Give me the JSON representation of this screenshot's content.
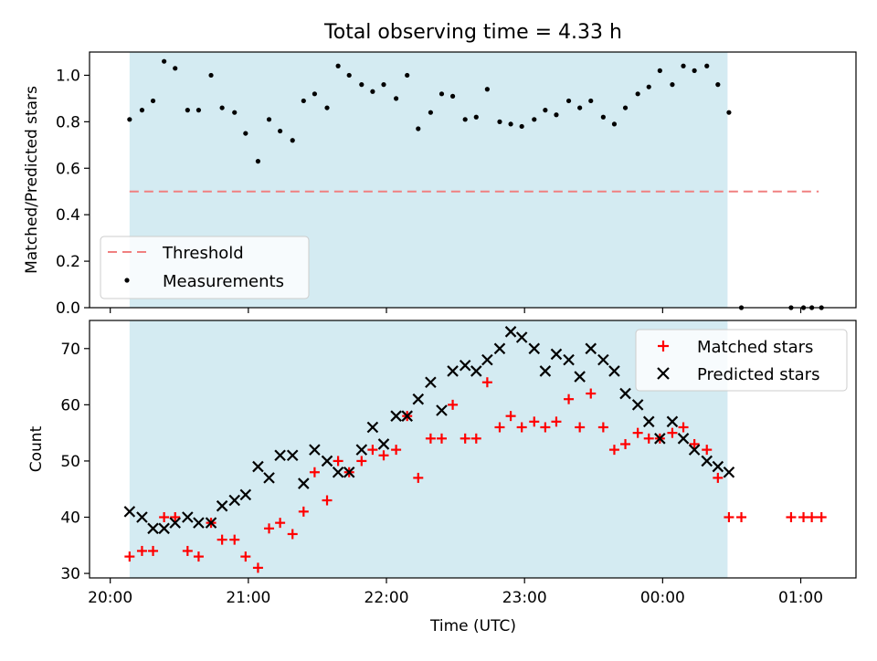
{
  "chart_data": [
    {
      "type": "scatter",
      "title": "Total observing time = 4.33 h",
      "ylabel": "Matched/Predicted stars",
      "xlabel": "",
      "x_unit": "hours since 20:00 UTC",
      "xlim": [
        -0.15,
        5.4
      ],
      "ylim": [
        0.0,
        1.1
      ],
      "y_ticks": [
        0.0,
        0.2,
        0.4,
        0.6,
        0.8,
        1.0
      ],
      "y_tick_labels": [
        "0.0",
        "0.2",
        "0.4",
        "0.6",
        "0.8",
        "1.0"
      ],
      "x_ticks": [
        0,
        1,
        2,
        3,
        4,
        5
      ],
      "observing_window": [
        0.14,
        4.47
      ],
      "threshold": {
        "name": "Threshold",
        "value": 0.5,
        "x": [
          0.14,
          5.13
        ],
        "color": "#f08080"
      },
      "series": [
        {
          "name": "Measurements",
          "color": "#000000",
          "points": [
            [
              0.14,
              0.81
            ],
            [
              0.23,
              0.85
            ],
            [
              0.31,
              0.89
            ],
            [
              0.39,
              1.06
            ],
            [
              0.47,
              1.03
            ],
            [
              0.56,
              0.85
            ],
            [
              0.64,
              0.85
            ],
            [
              0.73,
              1.0
            ],
            [
              0.81,
              0.86
            ],
            [
              0.9,
              0.84
            ],
            [
              0.98,
              0.75
            ],
            [
              1.07,
              0.63
            ],
            [
              1.15,
              0.81
            ],
            [
              1.23,
              0.76
            ],
            [
              1.32,
              0.72
            ],
            [
              1.4,
              0.89
            ],
            [
              1.48,
              0.92
            ],
            [
              1.57,
              0.86
            ],
            [
              1.65,
              1.04
            ],
            [
              1.73,
              1.0
            ],
            [
              1.82,
              0.96
            ],
            [
              1.9,
              0.93
            ],
            [
              1.98,
              0.96
            ],
            [
              2.07,
              0.9
            ],
            [
              2.15,
              1.0
            ],
            [
              2.23,
              0.77
            ],
            [
              2.32,
              0.84
            ],
            [
              2.4,
              0.92
            ],
            [
              2.48,
              0.91
            ],
            [
              2.57,
              0.81
            ],
            [
              2.65,
              0.82
            ],
            [
              2.73,
              0.94
            ],
            [
              2.82,
              0.8
            ],
            [
              2.9,
              0.79
            ],
            [
              2.98,
              0.78
            ],
            [
              3.07,
              0.81
            ],
            [
              3.15,
              0.85
            ],
            [
              3.23,
              0.83
            ],
            [
              3.32,
              0.89
            ],
            [
              3.4,
              0.86
            ],
            [
              3.48,
              0.89
            ],
            [
              3.57,
              0.82
            ],
            [
              3.65,
              0.79
            ],
            [
              3.73,
              0.86
            ],
            [
              3.82,
              0.92
            ],
            [
              3.9,
              0.95
            ],
            [
              3.98,
              1.02
            ],
            [
              4.07,
              0.96
            ],
            [
              4.15,
              1.04
            ],
            [
              4.23,
              1.02
            ],
            [
              4.32,
              1.04
            ],
            [
              4.4,
              0.96
            ],
            [
              4.48,
              0.84
            ],
            [
              4.57,
              0.0
            ],
            [
              4.93,
              0.0
            ],
            [
              5.02,
              0.0
            ],
            [
              5.08,
              0.0
            ],
            [
              5.15,
              0.0
            ]
          ]
        }
      ],
      "legend": {
        "placement": "lower-left",
        "entries": [
          "Threshold",
          "Measurements"
        ]
      }
    },
    {
      "type": "scatter",
      "title": "",
      "ylabel": "Count",
      "xlabel": "Time (UTC)",
      "x_unit": "hours since 20:00 UTC",
      "xlim": [
        -0.15,
        5.4
      ],
      "ylim": [
        29.2,
        75.0
      ],
      "y_ticks": [
        30,
        40,
        50,
        60,
        70
      ],
      "y_tick_labels": [
        "30",
        "40",
        "50",
        "60",
        "70"
      ],
      "x_ticks": [
        0,
        1,
        2,
        3,
        4,
        5
      ],
      "x_tick_labels": [
        "20:00",
        "21:00",
        "22:00",
        "23:00",
        "00:00",
        "01:00"
      ],
      "observing_window": [
        0.14,
        4.47
      ],
      "series": [
        {
          "name": "Matched stars",
          "marker": "plus",
          "color": "#ff0000",
          "points": [
            [
              0.14,
              33
            ],
            [
              0.23,
              34
            ],
            [
              0.31,
              34
            ],
            [
              0.39,
              40
            ],
            [
              0.47,
              40
            ],
            [
              0.56,
              34
            ],
            [
              0.64,
              33
            ],
            [
              0.73,
              39
            ],
            [
              0.81,
              36
            ],
            [
              0.9,
              36
            ],
            [
              0.98,
              33
            ],
            [
              1.07,
              31
            ],
            [
              1.15,
              38
            ],
            [
              1.23,
              39
            ],
            [
              1.32,
              37
            ],
            [
              1.4,
              41
            ],
            [
              1.48,
              48
            ],
            [
              1.57,
              43
            ],
            [
              1.65,
              50
            ],
            [
              1.73,
              48
            ],
            [
              1.82,
              50
            ],
            [
              1.9,
              52
            ],
            [
              1.98,
              51
            ],
            [
              2.07,
              52
            ],
            [
              2.15,
              58
            ],
            [
              2.23,
              47
            ],
            [
              2.32,
              54
            ],
            [
              2.4,
              54
            ],
            [
              2.48,
              60
            ],
            [
              2.57,
              54
            ],
            [
              2.65,
              54
            ],
            [
              2.73,
              64
            ],
            [
              2.82,
              56
            ],
            [
              2.9,
              58
            ],
            [
              2.98,
              56
            ],
            [
              3.07,
              57
            ],
            [
              3.15,
              56
            ],
            [
              3.23,
              57
            ],
            [
              3.32,
              61
            ],
            [
              3.4,
              56
            ],
            [
              3.48,
              62
            ],
            [
              3.57,
              56
            ],
            [
              3.65,
              52
            ],
            [
              3.73,
              53
            ],
            [
              3.82,
              55
            ],
            [
              3.9,
              54
            ],
            [
              3.98,
              54
            ],
            [
              4.07,
              55
            ],
            [
              4.15,
              56
            ],
            [
              4.23,
              53
            ],
            [
              4.32,
              52
            ],
            [
              4.4,
              47
            ],
            [
              4.48,
              40
            ],
            [
              4.57,
              40
            ],
            [
              4.93,
              40
            ],
            [
              5.02,
              40
            ],
            [
              5.08,
              40
            ],
            [
              5.15,
              40
            ]
          ]
        },
        {
          "name": "Predicted stars",
          "marker": "x",
          "color": "#000000",
          "points": [
            [
              0.14,
              41
            ],
            [
              0.23,
              40
            ],
            [
              0.31,
              38
            ],
            [
              0.39,
              38
            ],
            [
              0.47,
              39
            ],
            [
              0.56,
              40
            ],
            [
              0.64,
              39
            ],
            [
              0.73,
              39
            ],
            [
              0.81,
              42
            ],
            [
              0.9,
              43
            ],
            [
              0.98,
              44
            ],
            [
              1.07,
              49
            ],
            [
              1.15,
              47
            ],
            [
              1.23,
              51
            ],
            [
              1.32,
              51
            ],
            [
              1.4,
              46
            ],
            [
              1.48,
              52
            ],
            [
              1.57,
              50
            ],
            [
              1.65,
              48
            ],
            [
              1.73,
              48
            ],
            [
              1.82,
              52
            ],
            [
              1.9,
              56
            ],
            [
              1.98,
              53
            ],
            [
              2.07,
              58
            ],
            [
              2.15,
              58
            ],
            [
              2.23,
              61
            ],
            [
              2.32,
              64
            ],
            [
              2.4,
              59
            ],
            [
              2.48,
              66
            ],
            [
              2.57,
              67
            ],
            [
              2.65,
              66
            ],
            [
              2.73,
              68
            ],
            [
              2.82,
              70
            ],
            [
              2.9,
              73
            ],
            [
              2.98,
              72
            ],
            [
              3.07,
              70
            ],
            [
              3.15,
              66
            ],
            [
              3.23,
              69
            ],
            [
              3.32,
              68
            ],
            [
              3.4,
              65
            ],
            [
              3.48,
              70
            ],
            [
              3.57,
              68
            ],
            [
              3.65,
              66
            ],
            [
              3.73,
              62
            ],
            [
              3.82,
              60
            ],
            [
              3.9,
              57
            ],
            [
              3.98,
              54
            ],
            [
              4.07,
              57
            ],
            [
              4.15,
              54
            ],
            [
              4.23,
              52
            ],
            [
              4.32,
              50
            ],
            [
              4.4,
              49
            ],
            [
              4.48,
              48
            ]
          ]
        }
      ],
      "legend": {
        "placement": "upper-right",
        "entries": [
          "Matched stars",
          "Predicted stars"
        ]
      }
    }
  ],
  "colors": {
    "window_fill": "#d4ebf2",
    "threshold": "#f08080",
    "matched": "#ff0000",
    "predicted": "#000000",
    "measurement": "#000000"
  }
}
